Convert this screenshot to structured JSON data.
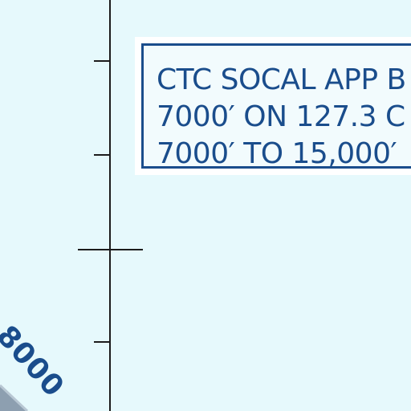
{
  "info_box": {
    "lines": [
      "CTC SOCAL APP B",
      "7000′ ON 127.3 C",
      "7000′ TO 15,000′"
    ],
    "border_color": "#1a4d8c"
  },
  "altitude_label": "8000",
  "colors": {
    "background": "#e6f9fc",
    "text": "#1a4d8c",
    "gridline": "#1c1c1c",
    "terrain": "#8d9fb0"
  }
}
